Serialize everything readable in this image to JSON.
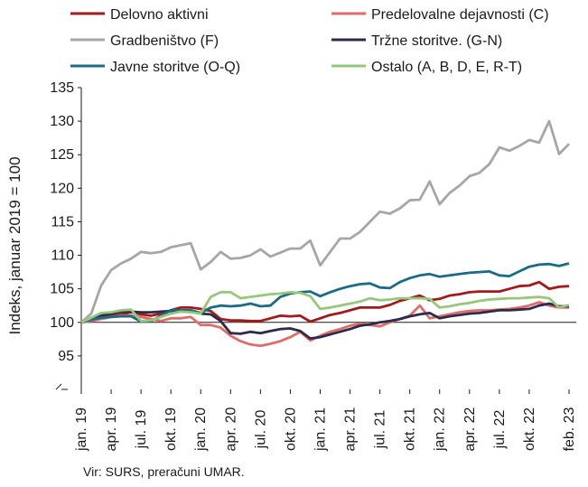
{
  "chart_data": {
    "type": "line",
    "ylabel": "Indeks, januar 2019 = 100",
    "ylim": [
      90,
      135
    ],
    "yticks": [
      95,
      100,
      105,
      110,
      115,
      120,
      125,
      130,
      135
    ],
    "xtick_labels": [
      "jan. 19",
      "apr. 19",
      "jul. 19",
      "okt. 19",
      "jan. 20",
      "apr. 20",
      "jul. 20",
      "okt. 20",
      "jan. 21",
      "apr. 21",
      "jul. 21",
      "okt. 21",
      "jan. 22",
      "apr. 22",
      "jul. 22",
      "okt. 22",
      "feb. 23"
    ],
    "x_count": 50,
    "source": "Vir: SURS, preračuni UMAR.",
    "legend_position": "top",
    "series": [
      {
        "name": "Delovno aktivni",
        "color": "#a31a1a",
        "values": [
          100,
          100.5,
          100.8,
          101,
          101.2,
          101.5,
          101.2,
          101,
          101.3,
          101.8,
          102.2,
          102.2,
          102,
          101.7,
          100.5,
          100.3,
          100.3,
          100.2,
          100.2,
          100.6,
          101,
          100.9,
          101,
          100.1,
          100.6,
          101.1,
          101.4,
          101.8,
          102.2,
          102.2,
          102.2,
          102.6,
          103.2,
          103.6,
          104,
          103.3,
          103.5,
          104,
          104.2,
          104.5,
          104.6,
          104.6,
          104.6,
          105,
          105.4,
          105.5,
          106,
          105,
          105.3,
          105.4
        ]
      },
      {
        "name": "Predelovalne dejavnosti (C)",
        "color": "#e06b6b",
        "values": [
          100,
          100.2,
          100.5,
          100.8,
          101,
          101,
          100.8,
          100.5,
          100.2,
          100.6,
          100.6,
          100.8,
          99.6,
          99.6,
          99.2,
          98,
          97.2,
          96.7,
          96.5,
          96.8,
          97.2,
          97.8,
          98.6,
          97.3,
          98,
          98.6,
          99,
          99.5,
          99.8,
          99.6,
          99.4,
          100,
          100.5,
          101,
          102.5,
          100.6,
          100.9,
          101.2,
          101.5,
          101.7,
          101.8,
          101.8,
          101.9,
          102,
          102.2,
          102.5,
          103,
          102.5,
          102.2,
          102.2
        ]
      },
      {
        "name": "Gradbeništvo (F)",
        "color": "#a6a6a6",
        "values": [
          100,
          101.3,
          105.5,
          107.8,
          108.8,
          109.5,
          110.5,
          110.3,
          110.5,
          111.2,
          111.5,
          111.8,
          107.9,
          109,
          110.5,
          109.5,
          109.6,
          110,
          110.9,
          109.8,
          110.4,
          111,
          111,
          112.2,
          108.5,
          110.5,
          112.5,
          112.5,
          113.5,
          115,
          116.5,
          116.2,
          117,
          118.2,
          118.3,
          121,
          117.6,
          119.3,
          120.4,
          121.8,
          122.3,
          123.6,
          126.1,
          125.6,
          126.3,
          127.2,
          126.8,
          130,
          125.1,
          126.6
        ]
      },
      {
        "name": "Tržne storitve. (G-N)",
        "color": "#2b2b4a",
        "values": [
          100,
          100.5,
          101,
          101.3,
          101.6,
          101.6,
          101.5,
          101.5,
          101.6,
          101.7,
          101.7,
          101.7,
          101.3,
          101.2,
          100.2,
          98.4,
          98.3,
          98.6,
          98.4,
          98.7,
          99,
          99.1,
          98.7,
          97.6,
          97.8,
          98.2,
          98.6,
          99,
          99.5,
          99.7,
          100,
          100.2,
          100.5,
          100.9,
          101.2,
          101.4,
          100.6,
          100.9,
          101.1,
          101.3,
          101.4,
          101.6,
          101.8,
          101.8,
          101.9,
          102,
          102.5,
          102.8,
          102.4,
          102.4
        ]
      },
      {
        "name": "Javne storitve (O-Q)",
        "color": "#1a6b85",
        "values": [
          100,
          100.4,
          100.7,
          100.8,
          100.9,
          100.9,
          100.1,
          100.2,
          101,
          101.8,
          101.8,
          101.8,
          101.4,
          102.2,
          102.5,
          102.4,
          102.5,
          102.8,
          102.4,
          102.5,
          103.8,
          104.3,
          104.5,
          104.6,
          103.9,
          104.5,
          105,
          105.4,
          105.7,
          105.8,
          105.2,
          105.1,
          106,
          106.6,
          107,
          107.2,
          106.8,
          107,
          107.2,
          107.4,
          107.5,
          107.6,
          107,
          106.9,
          107.6,
          108.3,
          108.6,
          108.7,
          108.4,
          108.8
        ]
      },
      {
        "name": "Ostalo (A, B, D, E, R-T)",
        "color": "#96c77a",
        "values": [
          100,
          100.7,
          101.4,
          101.5,
          101.8,
          101.9,
          100.2,
          100.3,
          100.8,
          101.3,
          101.6,
          101.5,
          101.3,
          103.8,
          104.5,
          104.5,
          103.6,
          103.8,
          104,
          104.2,
          104.3,
          104.5,
          104.4,
          103.9,
          102,
          102.2,
          102.5,
          102.8,
          103.1,
          103.6,
          103.3,
          103.4,
          103.6,
          103.6,
          103.6,
          103.5,
          102.2,
          102.4,
          102.7,
          102.9,
          103.2,
          103.4,
          103.5,
          103.6,
          103.6,
          103.7,
          103.8,
          103.6,
          102.2,
          102.6
        ]
      }
    ]
  }
}
